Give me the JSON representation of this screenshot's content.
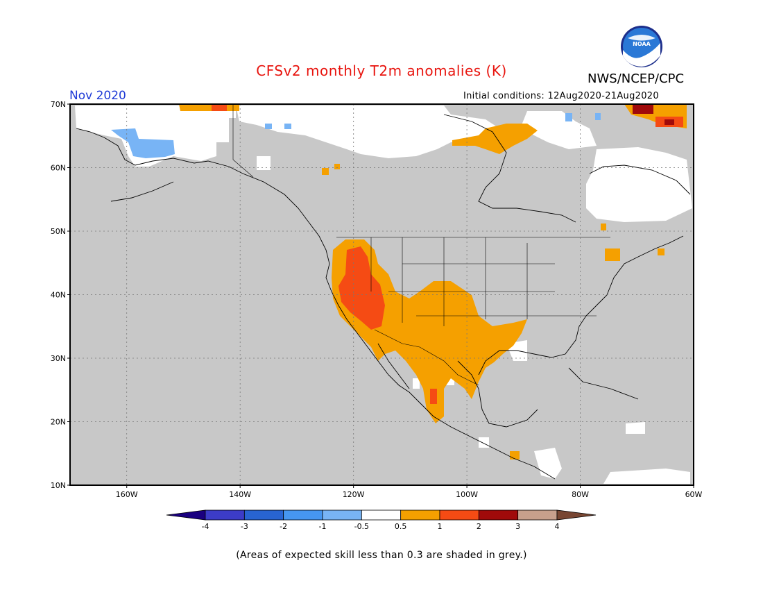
{
  "title": "CFSv2 monthly T2m anomalies (K)",
  "month_label": "Nov 2020",
  "org_label": "NWS/NCEP/CPC",
  "initial_conditions": "Initial conditions: 12Aug2020-21Aug2020",
  "skill_note": "(Areas of expected skill less than 0.3 are shaded in grey.)",
  "logo": {
    "icon": "noaa-logo",
    "text": "NOAA"
  },
  "map": {
    "lon_range": [
      -170,
      -60
    ],
    "lat_range": [
      10,
      70
    ],
    "lat_ticks": [
      "70N",
      "60N",
      "50N",
      "40N",
      "30N",
      "20N",
      "10N"
    ],
    "lon_ticks": [
      "160W",
      "140W",
      "120W",
      "100W",
      "80W",
      "60W"
    ],
    "grid": true,
    "colors": {
      "low_skill": "#c8c8c8",
      "frame": "#000000"
    }
  },
  "colorbar": {
    "labels": [
      "-4",
      "-3",
      "-2",
      "-1",
      "-0.5",
      "0.5",
      "1",
      "2",
      "3",
      "4"
    ],
    "colors": [
      "#1a0080",
      "#3c3cc8",
      "#2864d2",
      "#4696f0",
      "#78b4f5",
      "#ffffff",
      "#f5a000",
      "#f54b14",
      "#a00a0a",
      "#c8a08c",
      "#784632"
    ]
  }
}
